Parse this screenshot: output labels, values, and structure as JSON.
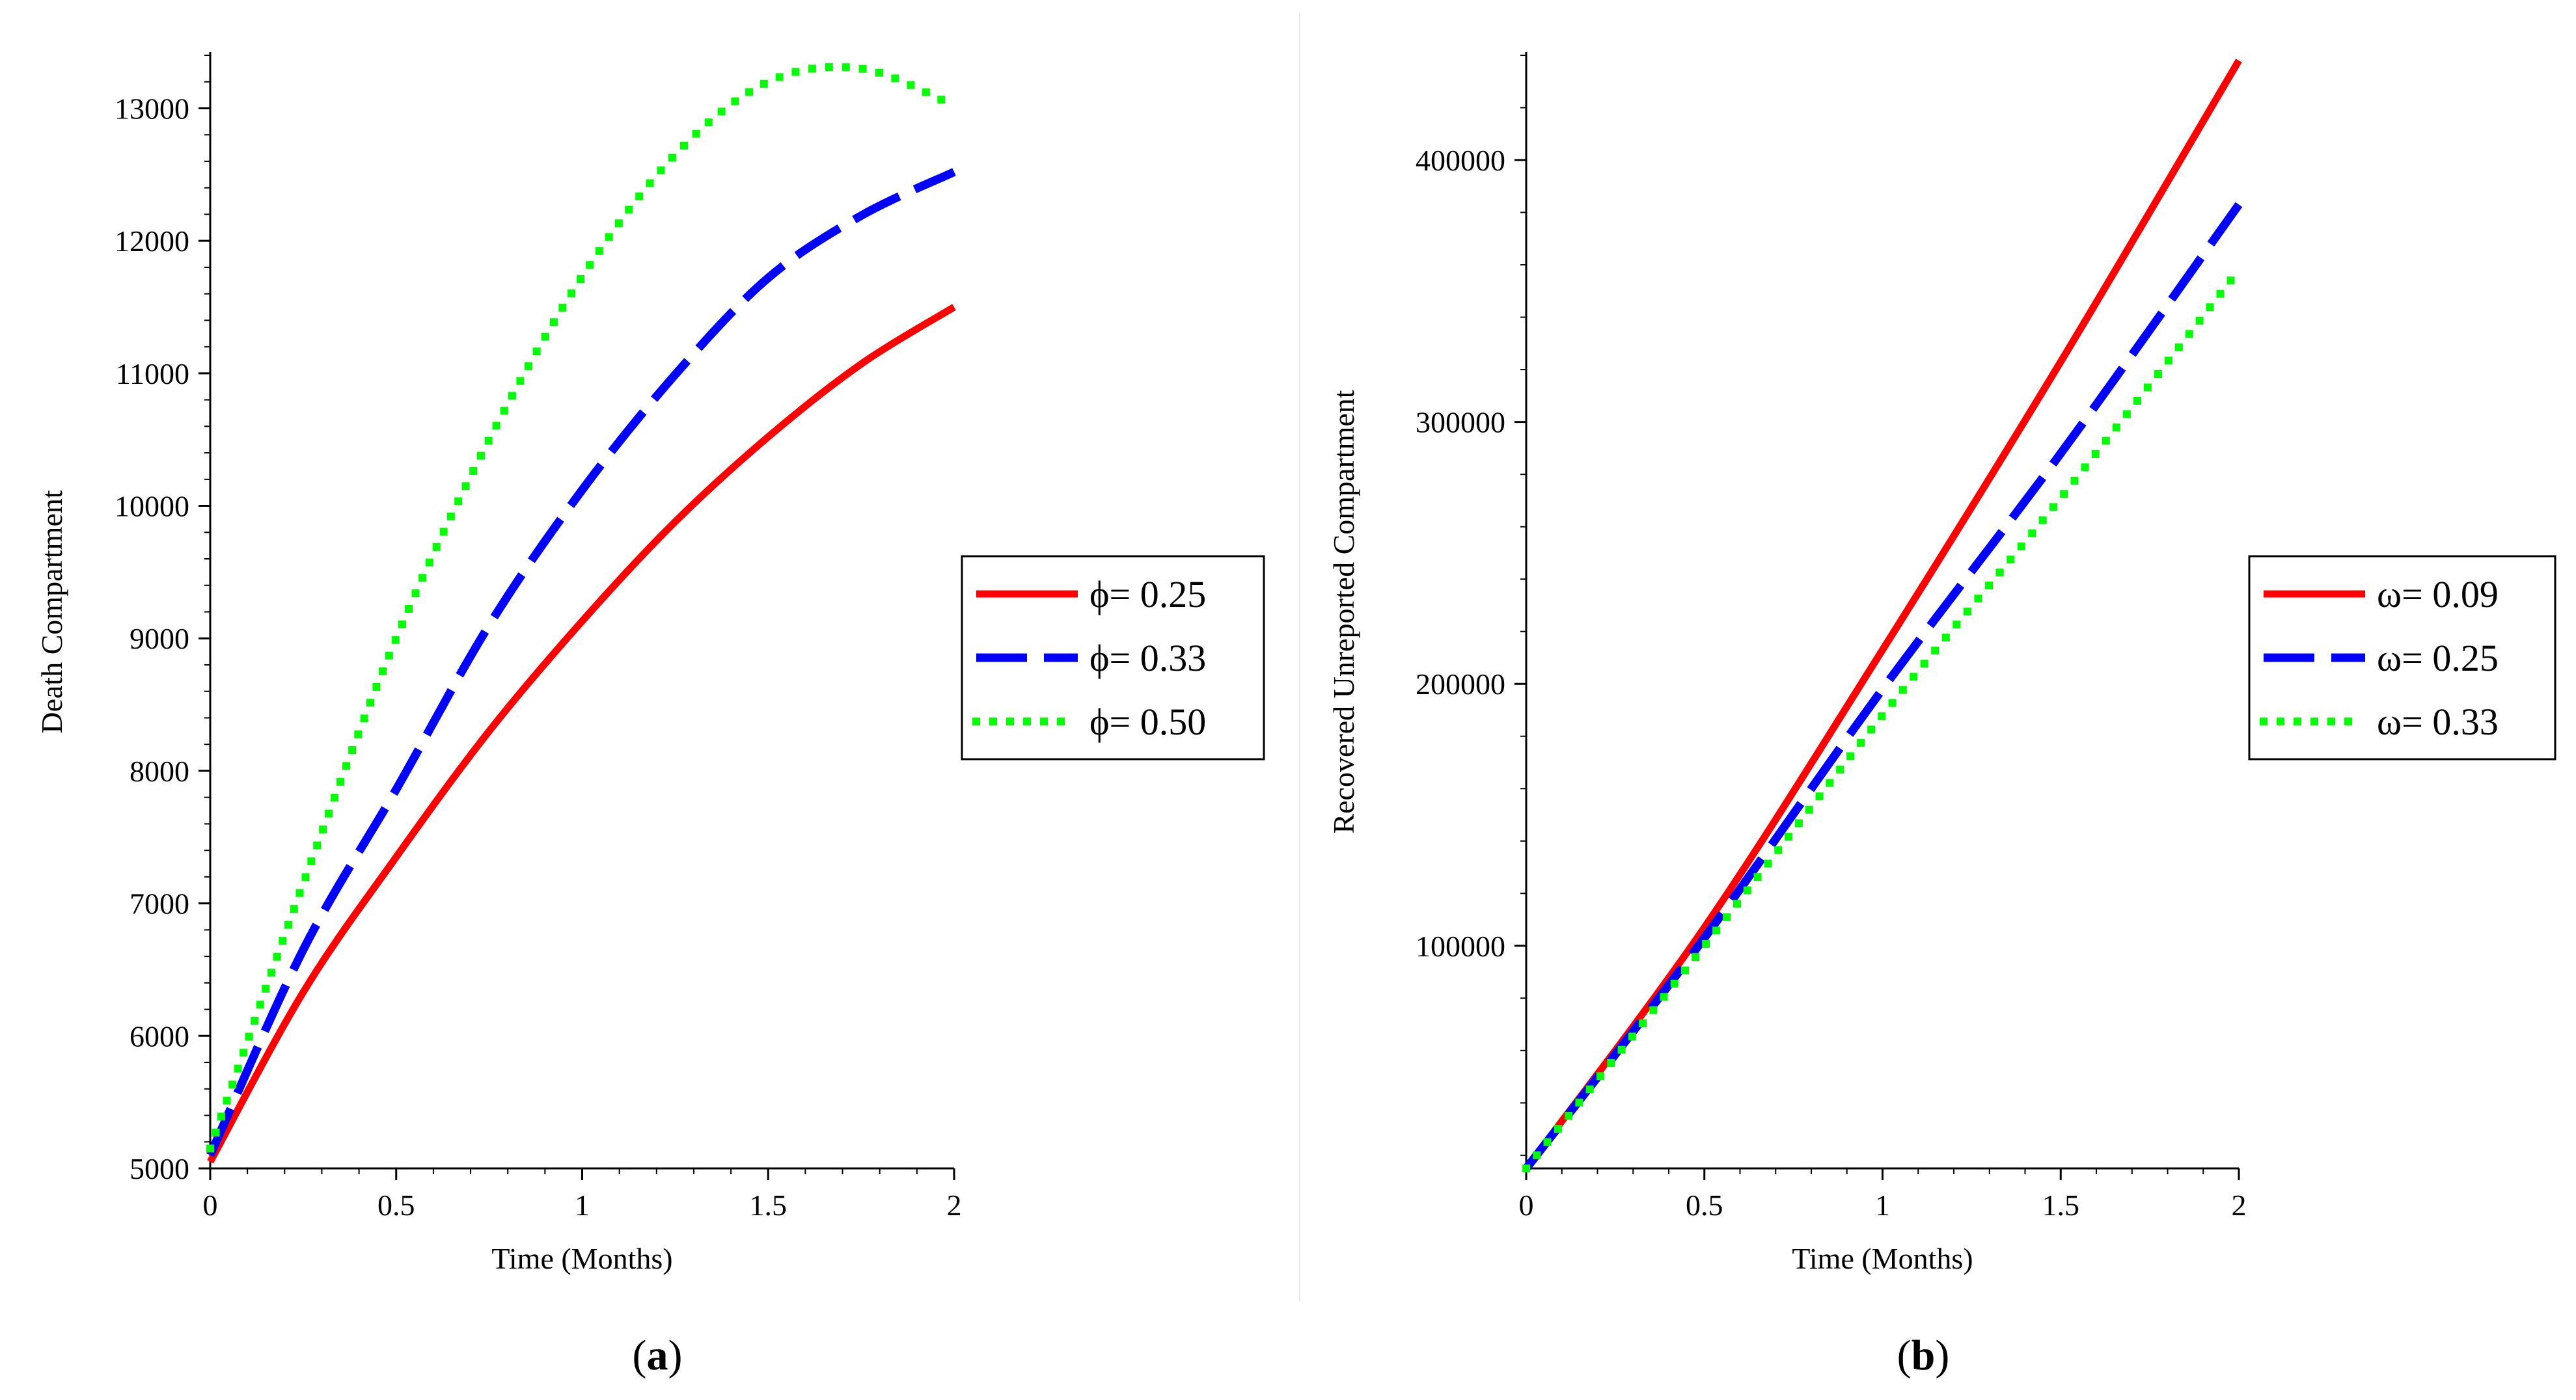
{
  "chart_data": [
    {
      "type": "line",
      "panel": "a",
      "caption": {
        "open": "(",
        "letter": "a",
        "close": ")"
      },
      "xlabel": "Time (Months)",
      "ylabel": "Death Compartment",
      "xlim": [
        0,
        2
      ],
      "ylim": [
        5000,
        13400
      ],
      "xticks": [
        0,
        0.5,
        1,
        1.5,
        2
      ],
      "xtick_labels": [
        "0",
        "0.5",
        "1",
        "1.5",
        "2"
      ],
      "yticks": [
        5000,
        6000,
        7000,
        8000,
        9000,
        10000,
        11000,
        12000,
        13000
      ],
      "ytick_labels": [
        "5000",
        "6000",
        "7000",
        "8000",
        "9000",
        "10000",
        "11000",
        "12000",
        "13000"
      ],
      "x": [
        0,
        0.25,
        0.5,
        0.75,
        1.0,
        1.25,
        1.5,
        1.75,
        2.0
      ],
      "series": [
        {
          "name": "ϕ= 0.25",
          "color": "#ff0000",
          "style": "solid",
          "values": [
            5050,
            6330,
            7350,
            8300,
            9130,
            9880,
            10520,
            11070,
            11500
          ]
        },
        {
          "name": "ϕ= 0.33",
          "color": "#0000ff",
          "style": "dashed",
          "values": [
            5100,
            6650,
            7860,
            9100,
            10120,
            10990,
            11720,
            12190,
            12520
          ]
        },
        {
          "name": "ϕ= 0.50",
          "color": "#00ff00",
          "style": "dotted",
          "values": [
            5150,
            7150,
            9000,
            10500,
            11730,
            12650,
            13200,
            13300,
            13020
          ]
        }
      ],
      "legend": "right"
    },
    {
      "type": "line",
      "panel": "b",
      "caption": {
        "open": "(",
        "letter": "b",
        "close": ")"
      },
      "xlabel": "Time (Months)",
      "ylabel": "Recovered Unreported Compartment",
      "xlim": [
        0,
        2
      ],
      "ylim": [
        15000,
        440000
      ],
      "xticks": [
        0,
        0.5,
        1,
        1.5,
        2
      ],
      "xtick_labels": [
        "0",
        "0.5",
        "1",
        "1.5",
        "2"
      ],
      "yticks": [
        100000,
        200000,
        300000,
        400000
      ],
      "ytick_labels": [
        "100000",
        "200000",
        "300000",
        "400000"
      ],
      "x": [
        0,
        0.5,
        1.0,
        1.5,
        2.0
      ],
      "series": [
        {
          "name": "ω= 0.09",
          "color": "#ff0000",
          "style": "solid",
          "values": [
            15000,
            107000,
            213000,
            323000,
            438000
          ]
        },
        {
          "name": "ω= 0.25",
          "color": "#0000ff",
          "style": "dashed",
          "values": [
            15000,
            103000,
            198000,
            288000,
            383000
          ]
        },
        {
          "name": "ω= 0.33",
          "color": "#00ff00",
          "style": "dotted",
          "values": [
            15000,
            100000,
            188000,
            271000,
            358000
          ]
        }
      ],
      "legend": "right"
    }
  ]
}
